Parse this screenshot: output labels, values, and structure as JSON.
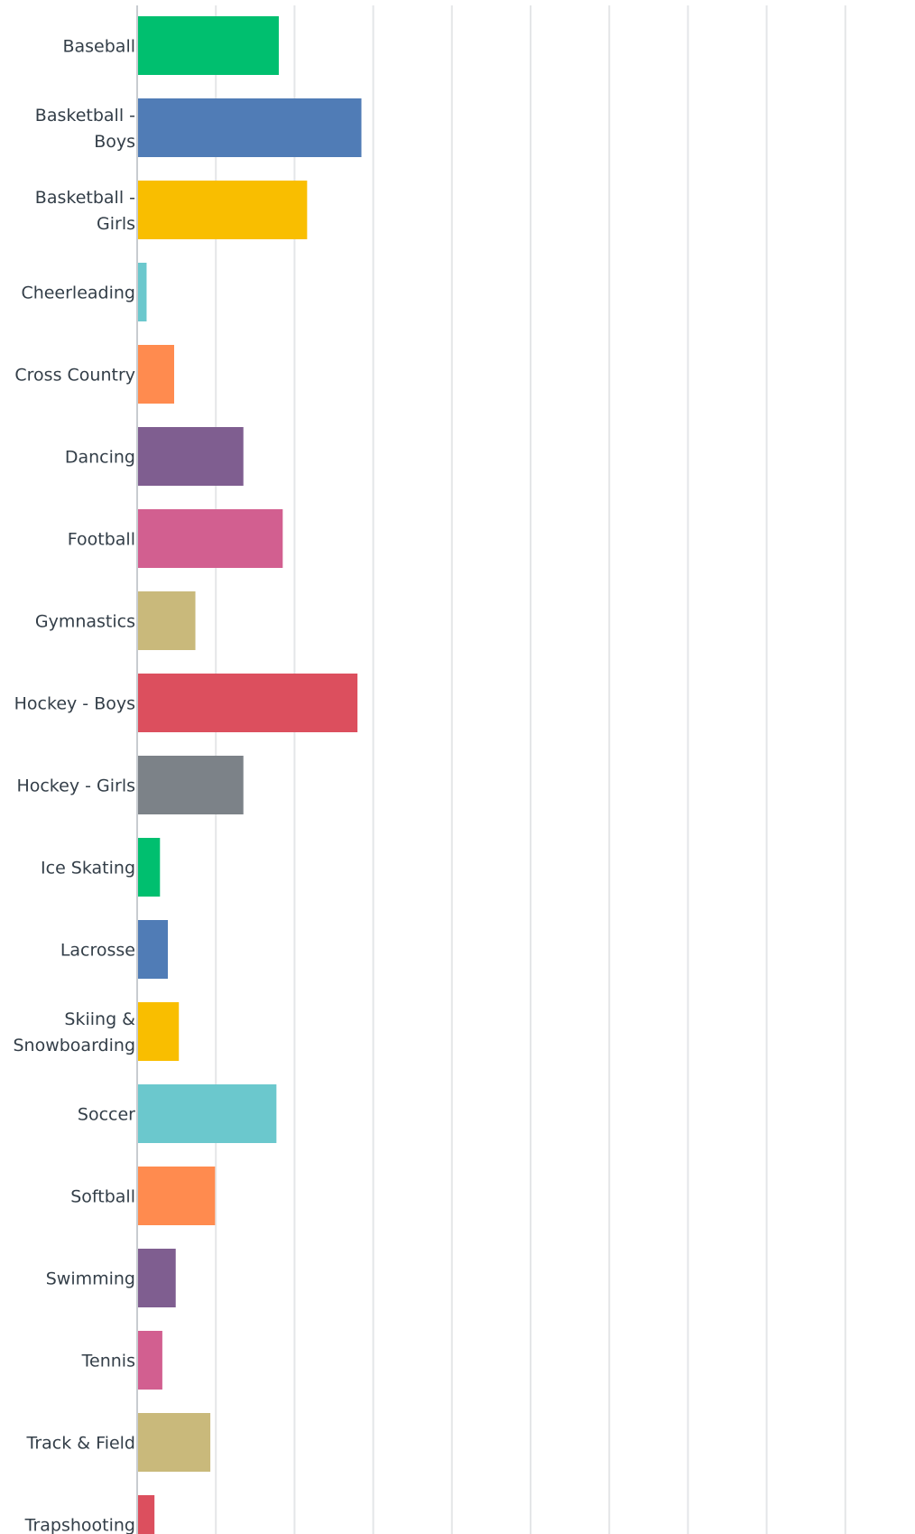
{
  "chart_data": {
    "type": "bar",
    "orientation": "horizontal",
    "categories": [
      "Baseball",
      "Basketball - Boys",
      "Basketball - Girls",
      "Cheerleading",
      "Cross Country",
      "Dancing",
      "Football",
      "Gymnastics",
      "Hockey - Boys",
      "Hockey - Girls",
      "Ice Skating",
      "Lacrosse",
      "Skiing & Snowboarding",
      "Soccer",
      "Softball",
      "Swimming",
      "Tennis",
      "Track & Field",
      "Trapshooting"
    ],
    "label_lines": [
      [
        "Baseball"
      ],
      [
        "Basketball -",
        "Boys"
      ],
      [
        "Basketball -",
        "Girls"
      ],
      [
        "Cheerleading"
      ],
      [
        "Cross Country"
      ],
      [
        "Dancing"
      ],
      [
        "Football"
      ],
      [
        "Gymnastics"
      ],
      [
        "Hockey - Boys"
      ],
      [
        "Hockey - Girls"
      ],
      [
        "Ice Skating"
      ],
      [
        "Lacrosse"
      ],
      [
        "Skiing &",
        "Snowboarding"
      ],
      [
        "Soccer"
      ],
      [
        "Softball"
      ],
      [
        "Swimming"
      ],
      [
        "Tennis"
      ],
      [
        "Track & Field"
      ],
      [
        "Trapshooting"
      ]
    ],
    "values": [
      18.0,
      28.5,
      21.6,
      1.2,
      4.7,
      13.5,
      18.5,
      7.4,
      28.0,
      13.5,
      2.9,
      3.9,
      5.3,
      17.7,
      9.9,
      4.9,
      3.2,
      9.3,
      2.2
    ],
    "colors": [
      "#00bf6f",
      "#507cb6",
      "#f9be00",
      "#6bc8cd",
      "#ff8b4f",
      "#7f5e90",
      "#d25f90",
      "#c9b97b",
      "#dc4f5e",
      "#7c8288",
      "#00bf6f",
      "#507cb6",
      "#f9be00",
      "#6bc8cd",
      "#ff8b4f",
      "#7f5e90",
      "#d25f90",
      "#c9b97b",
      "#dc4f5e"
    ],
    "xlim": [
      0,
      100
    ],
    "grid": true,
    "title": "",
    "xlabel": "",
    "ylabel": ""
  }
}
